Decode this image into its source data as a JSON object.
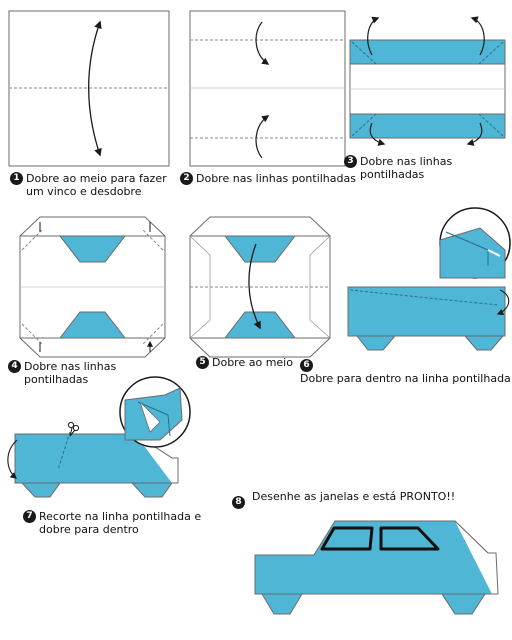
{
  "colors": {
    "paper_blue": "#4fb6d6",
    "paper_white": "#ffffff",
    "outline": "#6b6b6b",
    "dash": "#8a8a8a",
    "ink": "#1a1a1a"
  },
  "steps": [
    {
      "number": "1",
      "text_lines": [
        "Dobre ao meio para fazer",
        "um vinco e desdobre"
      ]
    },
    {
      "number": "2",
      "text_lines": [
        "Dobre nas linhas pontilhadas"
      ]
    },
    {
      "number": "3",
      "text_lines": [
        "Dobre nas linhas",
        "pontilhadas"
      ]
    },
    {
      "number": "4",
      "text_lines": [
        "Dobre nas linhas",
        "pontilhadas"
      ]
    },
    {
      "number": "5",
      "text_lines": [
        "Dobre ao meio"
      ]
    },
    {
      "number": "6",
      "text_lines": [
        "Dobre para dentro na linha pontilhada"
      ]
    },
    {
      "number": "7",
      "text_lines": [
        "Recorte na linha pontilhada e",
        "dobre para dentro"
      ]
    },
    {
      "number": "8",
      "text_lines": [
        "Desenhe as janelas e está PRONTO!!"
      ]
    }
  ]
}
